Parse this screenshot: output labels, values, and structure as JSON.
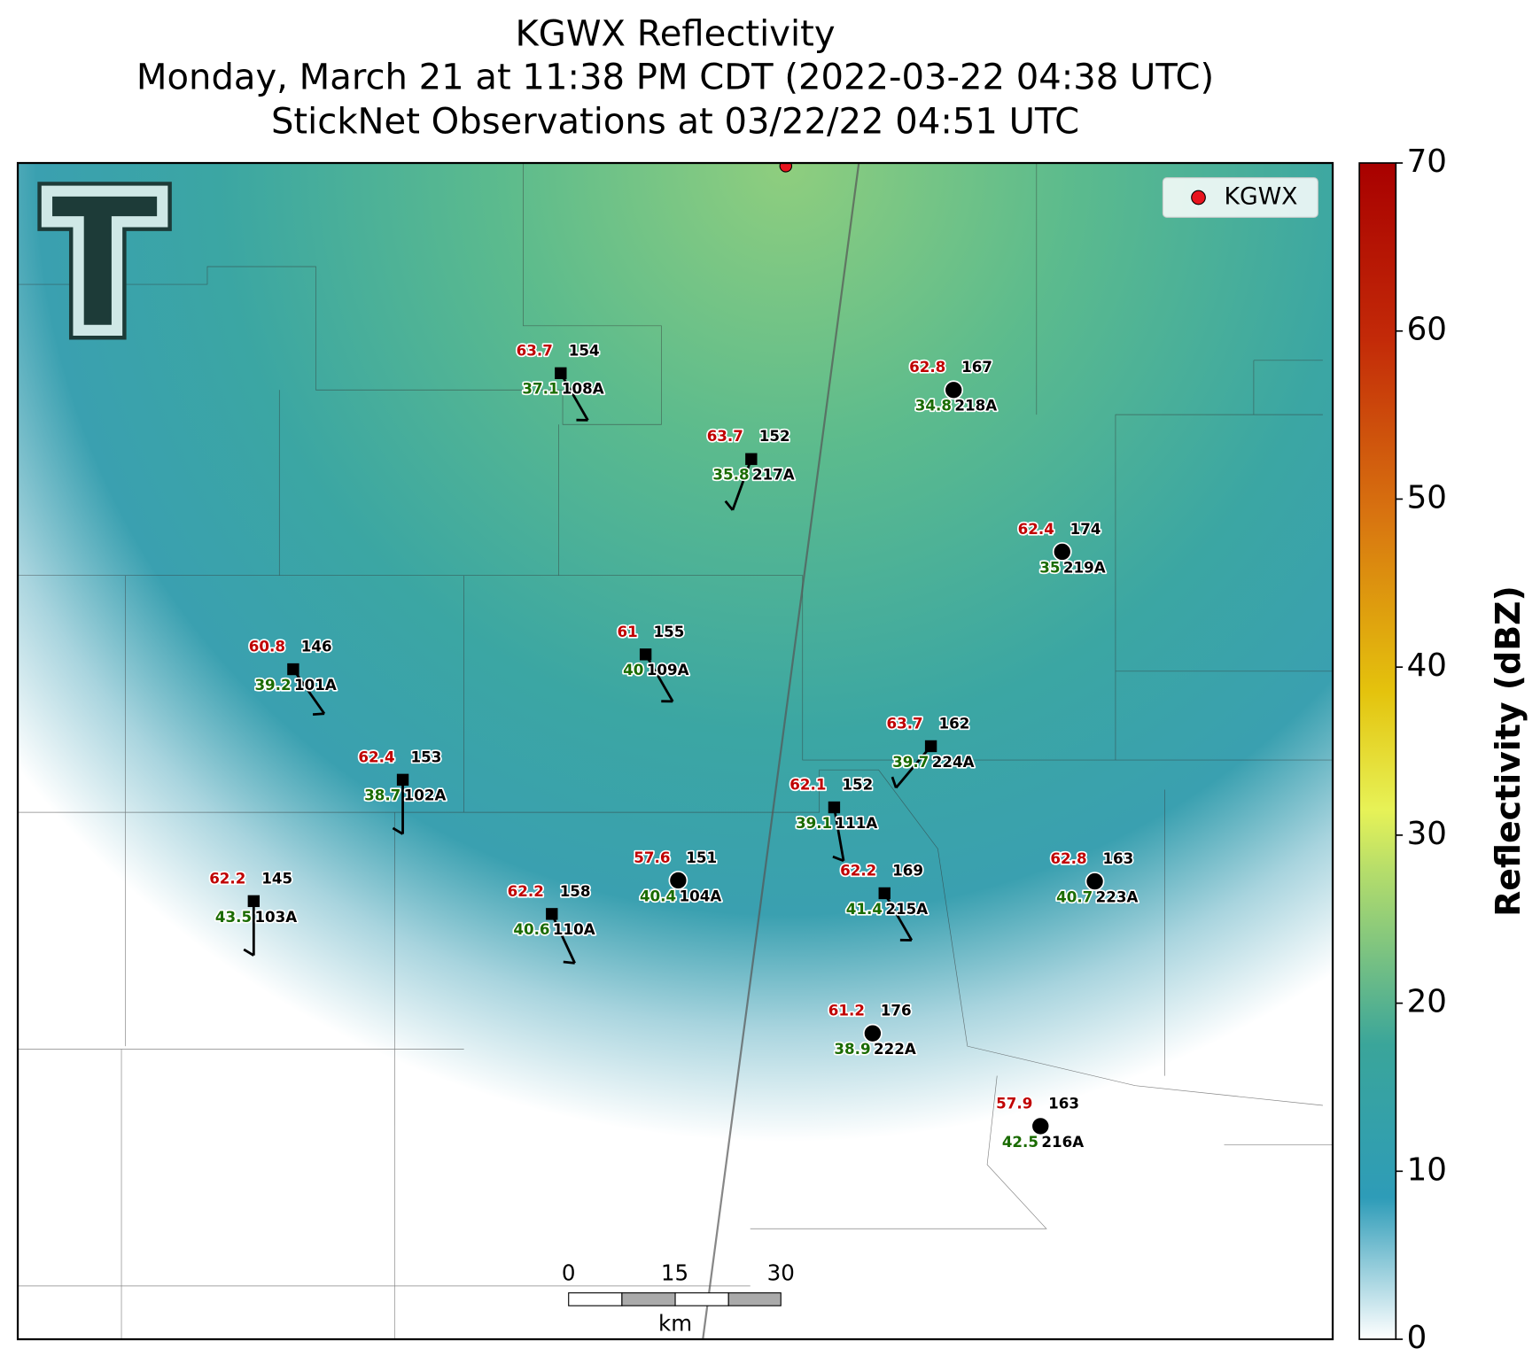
{
  "title": [
    "KGWX Reflectivity",
    "Monday, March 21 at 11:38 PM CDT (2022-03-22 04:38 UTC)",
    "StickNet Observations at 03/22/22 04:51 UTC"
  ],
  "legend": {
    "label": "KGWX",
    "color": "#e8141e"
  },
  "colorbar": {
    "label": "Reflectivity (dBZ)",
    "lim": [
      0,
      70
    ],
    "ticks": [
      0,
      10,
      20,
      30,
      40,
      50,
      60,
      70
    ]
  },
  "scale_bar": {
    "ticks": [
      0,
      15,
      30
    ],
    "unit": "km"
  },
  "stations": [
    {
      "id": "108A",
      "temperature": 63.7,
      "dewpoint": 37.1,
      "pressure": 154
    },
    {
      "id": "217A",
      "temperature": 63.7,
      "dewpoint": 35.8,
      "pressure": 152
    },
    {
      "id": "218A",
      "temperature": 62.8,
      "dewpoint": 34.8,
      "pressure": 167
    },
    {
      "id": "219A",
      "temperature": 62.4,
      "dewpoint": 35.0,
      "pressure": 174
    },
    {
      "id": "101A",
      "temperature": 60.8,
      "dewpoint": 39.2,
      "pressure": 146
    },
    {
      "id": "109A",
      "temperature": 61.0,
      "dewpoint": 40.0,
      "pressure": 155
    },
    {
      "id": "224A",
      "temperature": 63.7,
      "dewpoint": 39.7,
      "pressure": 162
    },
    {
      "id": "102A",
      "temperature": 62.4,
      "dewpoint": 38.7,
      "pressure": 153
    },
    {
      "id": "111A",
      "temperature": 62.1,
      "dewpoint": 39.1,
      "pressure": 152
    },
    {
      "id": "104A",
      "temperature": 57.6,
      "dewpoint": 40.4,
      "pressure": 151
    },
    {
      "id": "215A",
      "temperature": 62.2,
      "dewpoint": 41.4,
      "pressure": 169
    },
    {
      "id": "223A",
      "temperature": 62.8,
      "dewpoint": 40.7,
      "pressure": 163
    },
    {
      "id": "103A",
      "temperature": 62.2,
      "dewpoint": 43.5,
      "pressure": 145
    },
    {
      "id": "110A",
      "temperature": 62.2,
      "dewpoint": 40.6,
      "pressure": 158
    },
    {
      "id": "222A",
      "temperature": 61.2,
      "dewpoint": 38.9,
      "pressure": 176
    },
    {
      "id": "216A",
      "temperature": 57.9,
      "dewpoint": 42.5,
      "pressure": 163
    }
  ]
}
